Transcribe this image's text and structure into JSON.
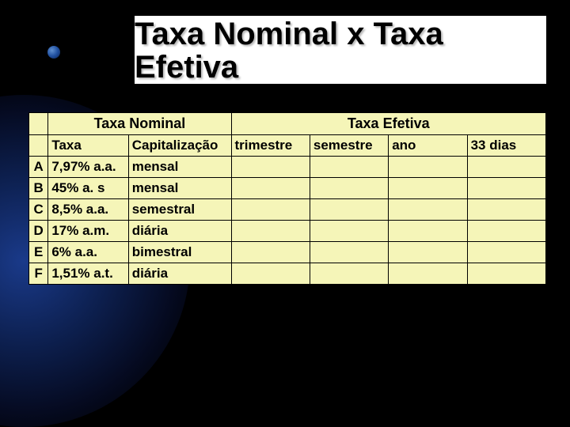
{
  "title": "Taxa Nominal x Taxa Efetiva",
  "table": {
    "header1": {
      "blank": "",
      "nominal": "Taxa Nominal",
      "efetiva": "Taxa Efetiva"
    },
    "header2": {
      "blank": "",
      "taxa": "Taxa",
      "capitalizacao": "Capitalização",
      "trimestre": "trimestre",
      "semestre": "semestre",
      "ano": "ano",
      "dias33": "33 dias"
    },
    "rows": [
      {
        "letter": "A",
        "taxa": "7,97% a.a.",
        "cap": "mensal"
      },
      {
        "letter": "B",
        "taxa": "45% a. s",
        "cap": "mensal"
      },
      {
        "letter": "C",
        "taxa": "8,5% a.a.",
        "cap": "semestral"
      },
      {
        "letter": "D",
        "taxa": "17% a.m.",
        "cap": "diária"
      },
      {
        "letter": "E",
        "taxa": "6% a.a.",
        "cap": "bimestral"
      },
      {
        "letter": "F",
        "taxa": "1,51% a.t.",
        "cap": "diária"
      }
    ],
    "styling": {
      "cell_bg": "#f5f5b8",
      "border_color": "#000000",
      "header_fontsize": 18,
      "body_fontsize": 17,
      "font_weight_header": "bold",
      "font_weight_body": "bold"
    }
  },
  "colors": {
    "page_bg": "#000000",
    "title_bg": "#ffffff",
    "title_color": "#000000",
    "gradient_inner": "#1a3a8a",
    "gradient_outer": "#000000"
  }
}
